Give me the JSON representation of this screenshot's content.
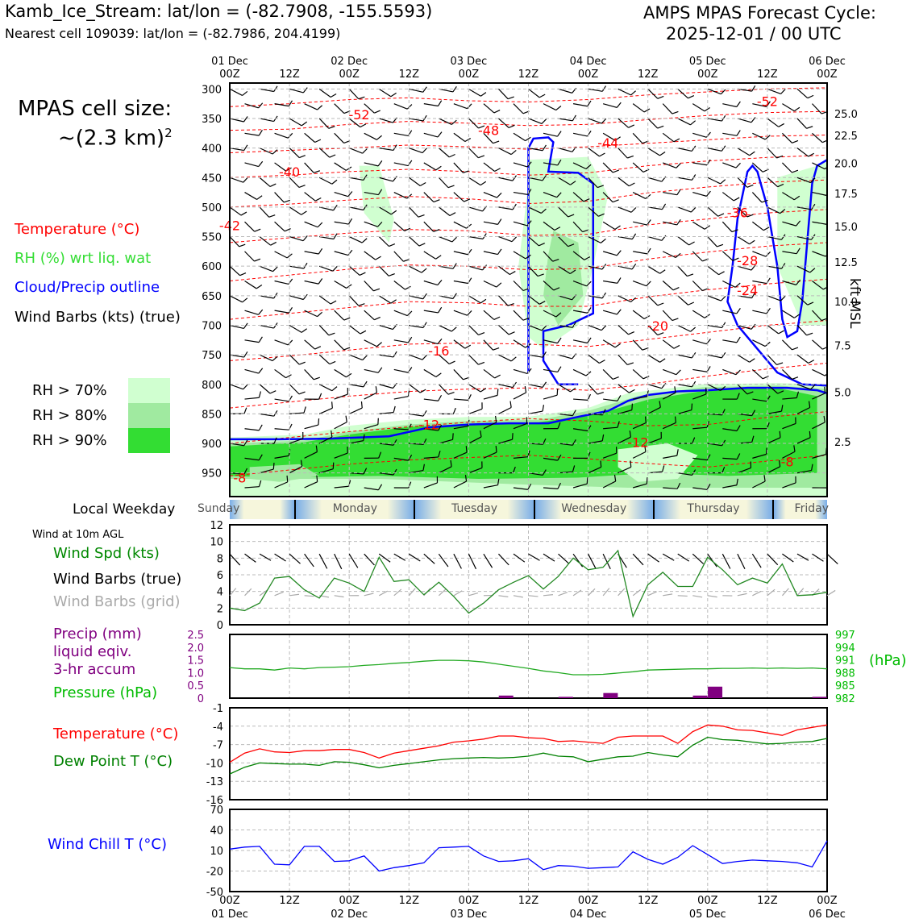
{
  "header": {
    "title_left": "Kamb_Ice_Stream: lat/lon = (-82.7908, -155.5593)",
    "subtitle_left": "Nearest cell 109039: lat/lon = (-82.7986, 204.4199)",
    "title_right_1": "AMPS MPAS Forecast Cycle:",
    "title_right_2": "2025-12-01 / 00 UTC"
  },
  "sidebar": {
    "cell_size_1": "MPAS cell size:",
    "cell_size_2": "~(2.3 km)",
    "cell_size_sup": "2",
    "legend_temperature": "Temperature (°C)",
    "legend_rh": "RH (%) wrt liq. wat",
    "legend_cloud": "Cloud/Precip outline",
    "legend_wind": "Wind Barbs (kts) (true)",
    "rh70": "RH > 70%",
    "rh80": "RH > 80%",
    "rh90": "RH > 90%",
    "weekday_label": "Local Weekday",
    "wind10m_title": "Wind at 10m AGL",
    "wind_spd": "Wind Spd (kts)",
    "wind_barbs_true": "Wind Barbs (true)",
    "wind_barbs_grid": "Wind Barbs (grid)",
    "precip_1": "Precip (mm)",
    "precip_2": "liquid eqiv.",
    "precip_3": "3-hr accum",
    "pressure": "Pressure (hPa)",
    "temp_label": "Temperature (°C)",
    "dewpoint_label": "Dew Point T (°C)",
    "windchill_label": "Wind Chill T (°C)"
  },
  "colors": {
    "temperature": "#ff0000",
    "rh": "#22dd22",
    "cloud": "#0000ff",
    "wind": "#000000",
    "wind_grid": "#aaaaaa",
    "precip": "#800080",
    "pressure": "#00aa00",
    "dewpoint": "#008000",
    "windchill": "#0000ff",
    "rh70": "#d0ffd0",
    "rh80": "#a0eaa0",
    "rh90": "#33dd33"
  },
  "chart_data": [
    {
      "type": "time-height",
      "title": "Time-height cross section",
      "ylabel_right": "kft MSL",
      "pressure_ticks": [
        300,
        350,
        400,
        450,
        500,
        550,
        600,
        650,
        700,
        750,
        800,
        850,
        900,
        950
      ],
      "height_ticks": [
        "25.0",
        "22.5",
        "20.0",
        "17.5",
        "15.0",
        "12.5",
        "10.0",
        "7.5",
        "5.0",
        "2.5"
      ],
      "height_tick_pressures": [
        342,
        379,
        426,
        477,
        533,
        593,
        660,
        734,
        813,
        897
      ],
      "x_top_days": [
        "01 Dec",
        "",
        "02 Dec",
        "",
        "03 Dec",
        "",
        "04 Dec",
        "",
        "05 Dec",
        "",
        "06 Dec"
      ],
      "x_top_hours": [
        "00Z",
        "12Z",
        "00Z",
        "12Z",
        "00Z",
        "12Z",
        "00Z",
        "12Z",
        "00Z",
        "12Z",
        "00Z"
      ],
      "temperature_contour_labels": [
        {
          "text": "-52",
          "t": 13,
          "p": 345
        },
        {
          "text": "-48",
          "t": 26,
          "p": 372
        },
        {
          "text": "-44",
          "t": 38,
          "p": 393
        },
        {
          "text": "-40",
          "t": 6,
          "p": 442
        },
        {
          "text": "-52",
          "t": 54,
          "p": 323
        },
        {
          "text": "-36",
          "t": 51,
          "p": 511
        },
        {
          "text": "-28",
          "t": 52,
          "p": 592
        },
        {
          "text": "-24",
          "t": 52,
          "p": 643
        },
        {
          "text": "-20",
          "t": 43,
          "p": 703
        },
        {
          "text": "-16",
          "t": 21,
          "p": 745
        },
        {
          "text": "-12",
          "t": 20,
          "p": 870
        },
        {
          "text": "-12",
          "t": 41,
          "p": 900
        },
        {
          "text": "-8",
          "t": 56,
          "p": 933
        },
        {
          "text": "-42",
          "t": 0,
          "p": 533
        },
        {
          "text": "-8",
          "t": 1,
          "p": 960
        }
      ]
    },
    {
      "type": "line",
      "title": "Wind at 10m AGL",
      "ylim": [
        0,
        12
      ],
      "yticks": [
        "0",
        "2",
        "4",
        "6",
        "8",
        "10",
        "12"
      ],
      "x_hours": [
        0,
        3,
        6,
        9,
        12,
        15,
        18,
        21,
        24,
        27,
        30,
        33,
        36,
        39,
        42,
        45,
        48,
        51,
        54,
        57,
        60,
        63,
        66,
        69,
        72,
        75,
        78,
        81,
        84,
        87,
        90,
        93,
        96,
        99,
        102,
        105,
        108,
        111,
        114,
        117,
        120
      ],
      "series": [
        {
          "name": "Wind Spd (kts)",
          "values": [
            2.0,
            1.7,
            2.6,
            5.6,
            5.8,
            4.2,
            3.2,
            5.6,
            5.0,
            4.0,
            8.1,
            5.2,
            5.4,
            3.6,
            5.1,
            3.4,
            1.4,
            2.6,
            4.2,
            5.1,
            5.9,
            4.3,
            5.8,
            8.0,
            6.6,
            6.9,
            8.9,
            1.0,
            4.8,
            6.3,
            4.6,
            4.6,
            8.1,
            6.6,
            4.8,
            5.6,
            5.0,
            7.3,
            3.5,
            3.6,
            3.9
          ]
        }
      ]
    },
    {
      "type": "bar+line",
      "title": "Precip and Pressure",
      "precip_ylim": [
        0,
        2.5
      ],
      "precip_yticks": [
        "0",
        "0.5",
        "1.0",
        "1.5",
        "2.0",
        "2.5"
      ],
      "pressure_yticks": [
        "982",
        "985",
        "988",
        "991",
        "994",
        "997"
      ],
      "pressure_ylim": [
        982,
        997
      ],
      "precip_bars": [
        {
          "t": 55.5,
          "mm": 0.1
        },
        {
          "t": 67.5,
          "mm": 0.05
        },
        {
          "t": 76.5,
          "mm": 0.2
        },
        {
          "t": 94.5,
          "mm": 0.1
        },
        {
          "t": 97.5,
          "mm": 0.45
        },
        {
          "t": 118.5,
          "mm": 0.05
        }
      ],
      "pressure_values": [
        989.2,
        988.9,
        988.9,
        988.6,
        989.1,
        988.9,
        989.2,
        989.3,
        989.4,
        989.7,
        989.9,
        990.2,
        990.4,
        990.7,
        990.9,
        990.9,
        990.8,
        990.5,
        990.0,
        989.5,
        989.0,
        988.4,
        988.0,
        987.5,
        987.5,
        987.6,
        987.9,
        988.2,
        988.6,
        988.7,
        988.8,
        988.9,
        988.9,
        989.0,
        989.0,
        989.1,
        989.0,
        989.1,
        989.0,
        989.1,
        988.9
      ]
    },
    {
      "type": "line",
      "title": "Temperature and Dew Point",
      "ylim": [
        -16,
        -1
      ],
      "yticks": [
        "-1",
        "-4",
        "-7",
        "-10",
        "-13",
        "-16"
      ],
      "series": [
        {
          "name": "Temperature (°C)",
          "values": [
            -9.9,
            -8.4,
            -7.7,
            -8.2,
            -8.3,
            -8.0,
            -8.0,
            -7.8,
            -7.8,
            -8.3,
            -9.2,
            -8.4,
            -8.0,
            -7.6,
            -7.2,
            -6.6,
            -6.4,
            -6.1,
            -5.6,
            -5.6,
            -5.9,
            -6.0,
            -6.5,
            -6.4,
            -6.6,
            -6.8,
            -5.8,
            -5.6,
            -5.6,
            -5.6,
            -6.8,
            -4.9,
            -3.8,
            -4.0,
            -4.6,
            -4.7,
            -5.1,
            -5.5,
            -4.6,
            -4.2,
            -3.8
          ]
        },
        {
          "name": "Dew Point T (°C)",
          "values": [
            -11.8,
            -10.7,
            -10.0,
            -10.1,
            -10.2,
            -10.2,
            -10.4,
            -9.8,
            -9.9,
            -10.3,
            -10.8,
            -10.4,
            -10.1,
            -9.8,
            -9.5,
            -9.3,
            -9.2,
            -9.1,
            -9.2,
            -9.1,
            -8.9,
            -8.4,
            -8.9,
            -9.0,
            -9.8,
            -9.4,
            -9.0,
            -8.9,
            -8.3,
            -8.7,
            -9.0,
            -7.1,
            -5.8,
            -6.2,
            -6.3,
            -6.6,
            -6.9,
            -6.8,
            -6.6,
            -6.5,
            -6.0
          ]
        }
      ]
    },
    {
      "type": "line",
      "title": "Wind Chill",
      "ylim": [
        -50,
        70
      ],
      "yticks": [
        "70",
        "40",
        "10",
        "-20",
        "-50"
      ],
      "x_bottom_hours": [
        "00Z",
        "12Z",
        "00Z",
        "12Z",
        "00Z",
        "12Z",
        "00Z",
        "12Z",
        "00Z",
        "12Z",
        "00Z"
      ],
      "x_bottom_days": [
        "01 Dec",
        "",
        "02 Dec",
        "",
        "03 Dec",
        "",
        "04 Dec",
        "",
        "05 Dec",
        "",
        "06 Dec"
      ],
      "series": [
        {
          "name": "Wind Chill T (°C)",
          "values": [
            12,
            15,
            16,
            -10,
            -11,
            16,
            16,
            -6,
            -5,
            2,
            -20,
            -15,
            -12,
            -8,
            14,
            15,
            16,
            2,
            -6,
            -5,
            -2,
            -18,
            -12,
            -13,
            -16,
            -15,
            -14,
            8,
            -3,
            -10,
            0,
            17,
            4,
            -9,
            -6,
            -4,
            -5,
            -6,
            -8,
            -14,
            24
          ]
        }
      ]
    }
  ],
  "weekday_bar": {
    "days": [
      "Sunday",
      "Monday",
      "Tuesday",
      "Wednesday",
      "Thursday",
      "Friday"
    ]
  }
}
